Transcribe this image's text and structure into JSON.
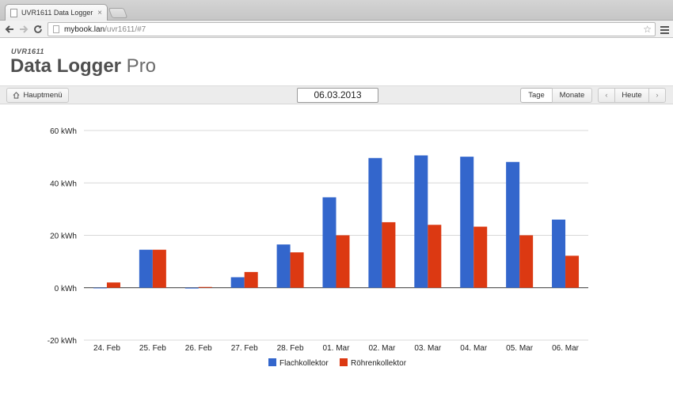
{
  "browser": {
    "tab_title": "UVR1611 Data Logger Pro",
    "tab_close": "×",
    "url_host": "mybook.lan",
    "url_path": "/uvr1611/#7",
    "icons": {
      "back": "back-arrow-icon",
      "forward": "forward-arrow-icon",
      "reload": "reload-icon",
      "star": "star-icon",
      "menu": "hamburger-menu-icon"
    }
  },
  "app": {
    "subtitle": "UVR1611",
    "title_bold": "Data Logger",
    "title_light": " Pro"
  },
  "controls": {
    "main_menu_icon": "home-icon",
    "main_menu_label": "Hauptmenü",
    "date": "06.03.2013",
    "view_days": "Tage",
    "view_months": "Monate",
    "active_view": "Tage",
    "prev_label": "‹",
    "today_label": "Heute",
    "next_label": "›"
  },
  "chart_data": {
    "type": "bar",
    "categories": [
      "24. Feb",
      "25. Feb",
      "26. Feb",
      "27. Feb",
      "28. Feb",
      "01. Mar",
      "02. Mar",
      "03. Mar",
      "04. Mar",
      "05. Mar",
      "06. Mar"
    ],
    "series": [
      {
        "name": "Flachkollektor",
        "color": "#3366cc",
        "values": [
          0,
          14.5,
          -0.3,
          4,
          16.5,
          34.5,
          49.5,
          50.5,
          50,
          48,
          26
        ]
      },
      {
        "name": "Röhrenkollektor",
        "color": "#dc3912",
        "values": [
          2,
          14.5,
          0.3,
          6,
          13.5,
          20,
          25,
          24,
          23.3,
          20,
          12.2
        ]
      }
    ],
    "yticks": [
      60,
      40,
      20,
      0,
      -20
    ],
    "ytick_labels": [
      "60 kWh",
      "40 kWh",
      "20 kWh",
      "0 kWh",
      "-20 kWh"
    ],
    "ylim": [
      -20,
      60
    ],
    "grid": true,
    "legend_position": "bottom"
  }
}
